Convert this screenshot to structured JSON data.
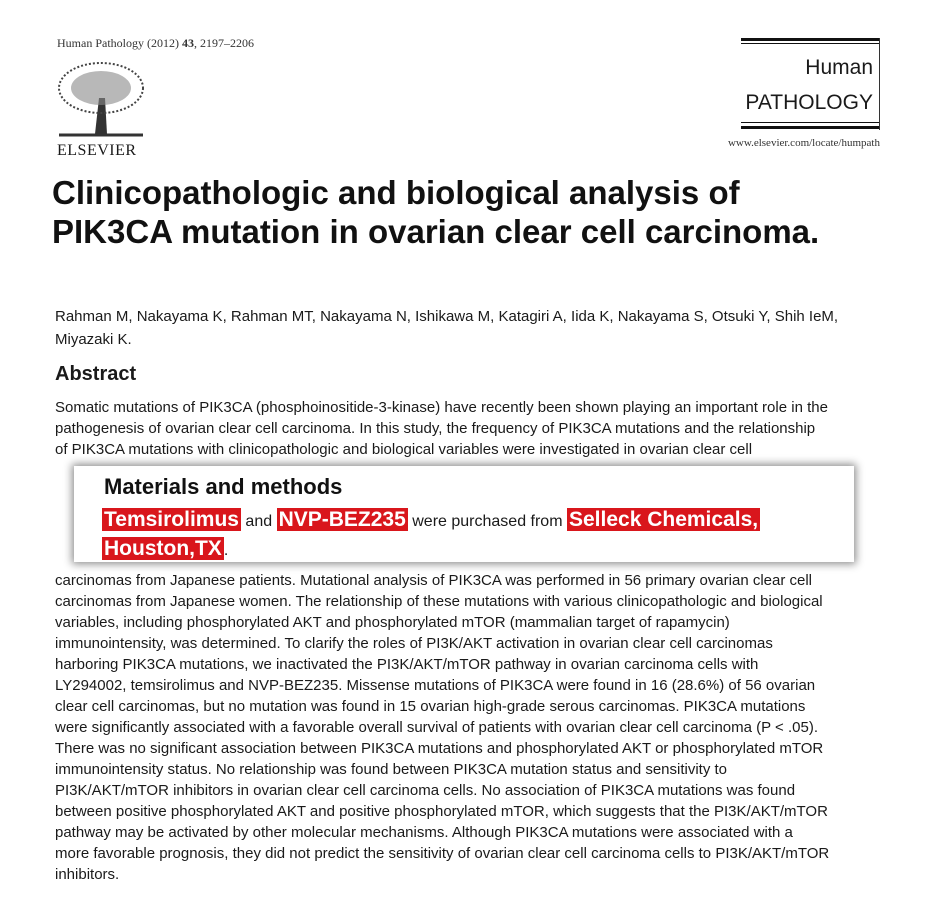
{
  "journal": {
    "citation_name": "Human Pathology (2012) ",
    "volume": "43",
    "pages": ", 2197–2206",
    "publisher": "ELSEVIER",
    "logo_line1": "Human",
    "logo_line2": "PATHOLOGY",
    "url": "www.elsevier.com/locate/humpath"
  },
  "article": {
    "title": "Clinicopathologic and biological analysis of PIK3CA mutation in ovarian clear cell carcinoma.",
    "authors": "Rahman M, Nakayama K, Rahman MT, Nakayama N, Ishikawa M, Katagiri A, Iida K, Nakayama S, Otsuki Y, Shih IeM, Miyazaki K.",
    "abstract_heading": "Abstract",
    "abstract_lines": [
      "Somatic mutations of PIK3CA (phosphoinositide-3-kinase) have recently been shown playing an important role in the",
      "pathogenesis of ovarian clear cell carcinoma. In this study, the frequency of PIK3CA mutations and the relationship",
      "of PIK3CA mutations with clinicopathologic and biological variables were investigated in ovarian clear cell",
      "carcinomas from Japanese patients. Mutational analysis of PIK3CA was performed in 56 primary ovarian clear cell",
      "carcinomas from Japanese women. The relationship of these mutations with various clinicopathologic and biological",
      "variables, including phosphorylated AKT and phosphorylated mTOR (mammalian target of rapamycin)",
      "immunointensity, was determined. To clarify the roles of PI3K/AKT activation in ovarian clear cell carcinomas",
      "harboring PIK3CA mutations, we inactivated the PI3K/AKT/mTOR pathway in ovarian carcinoma cells with",
      "LY294002, temsirolimus and NVP-BEZ235. Missense mutations of PIK3CA were found in 16 (28.6%) of 56 ovarian",
      "clear cell carcinomas, but no mutation was found in 15 ovarian high-grade serous carcinomas. PIK3CA mutations",
      "were significantly associated with a favorable overall survival of patients with ovarian clear cell carcinoma (P < .05).",
      "There was no significant association between PIK3CA mutations and phosphorylated AKT or phosphorylated mTOR",
      "immunointensity status. No relationship was found between PIK3CA mutation status and sensitivity to",
      "PI3K/AKT/mTOR inhibitors in ovarian clear cell carcinoma cells. No association of PIK3CA mutations was found",
      "between positive phosphorylated AKT and positive phosphorylated mTOR, which suggests that the PI3K/AKT/mTOR",
      "pathway may be activated by other molecular mechanisms. Although PIK3CA mutations were associated with a",
      "more favorable prognosis, they did not predict the sensitivity of ovarian clear cell carcinoma cells to PI3K/AKT/mTOR",
      "inhibitors."
    ]
  },
  "overlay": {
    "heading": "Materials and methods",
    "highlight1": "Temsirolimus",
    "text1": " and ",
    "highlight2": "NVP-BEZ235",
    "text2": " were purchased from ",
    "highlight3": "Selleck Chemicals,",
    "highlight4": "Houston,TX",
    "text3": ".",
    "highlight_color": "#d9161c"
  }
}
